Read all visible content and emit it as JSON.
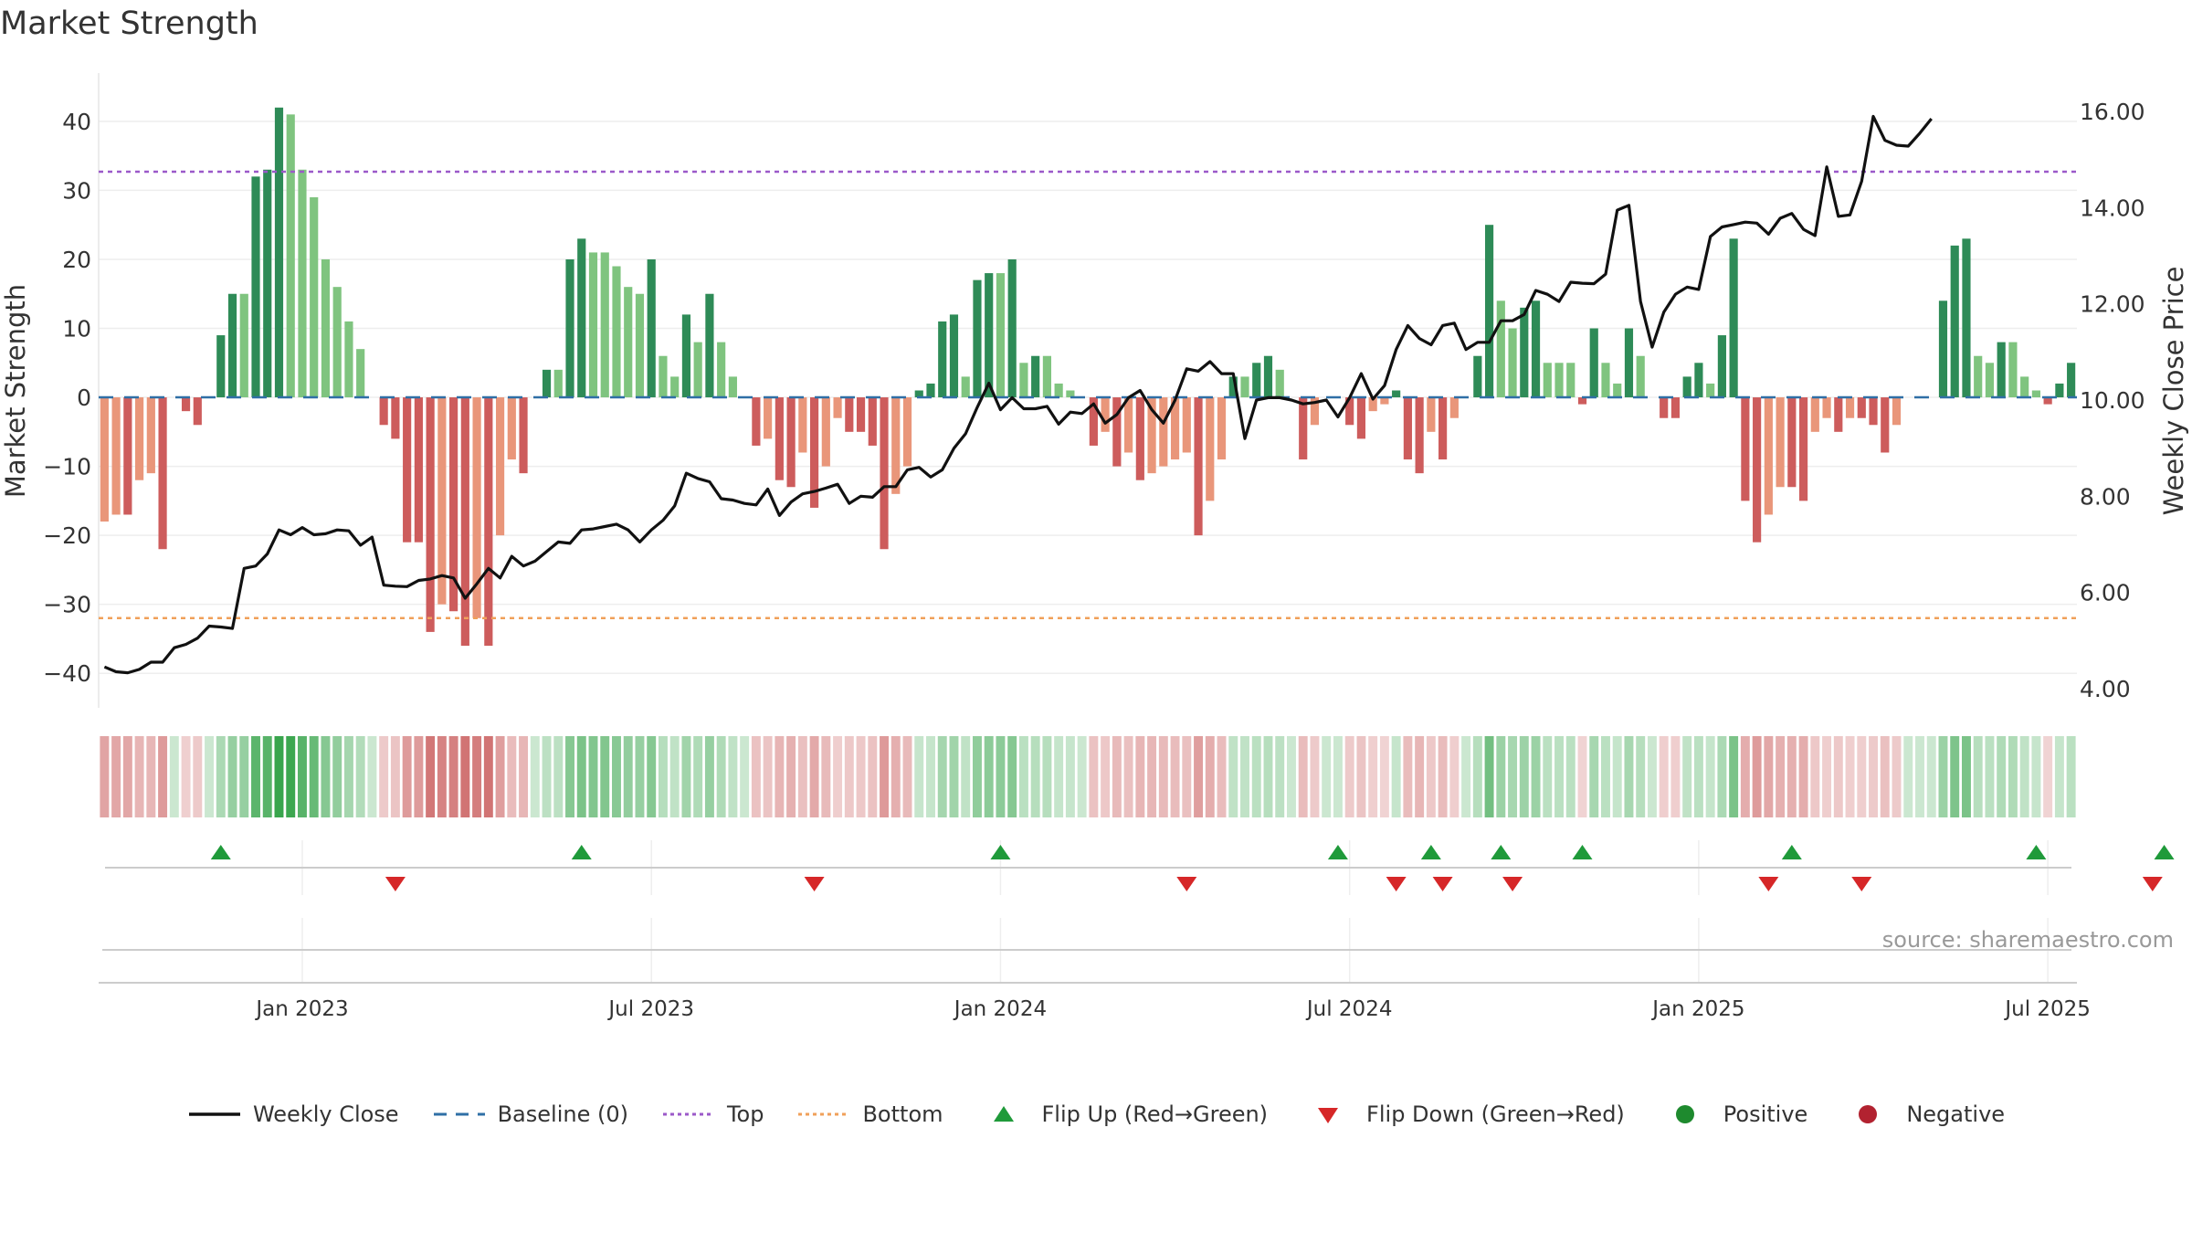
{
  "chart_data": {
    "type": "bar",
    "title": "Market Strength",
    "ylabel": "Market Strength",
    "y2label": "Weekly Close Price",
    "ylim": [
      -45,
      47
    ],
    "y2lim": [
      3.6,
      16.8
    ],
    "yticks": [
      40,
      30,
      20,
      10,
      0,
      -10,
      -20,
      -30,
      -40
    ],
    "yticklabels": [
      "40",
      "30",
      "20",
      "10",
      "0",
      "−10",
      "−20",
      "−30",
      "−40"
    ],
    "y2ticks": [
      16,
      14,
      12,
      10,
      8,
      6,
      4
    ],
    "y2ticklabels": [
      "16.00",
      "14.00",
      "12.00",
      "10.00",
      "8.00",
      "6.00",
      "4.00"
    ],
    "x_ticks": [
      {
        "label": "Jan 2023",
        "week": 17
      },
      {
        "label": "Jul 2023",
        "week": 47
      },
      {
        "label": "Jan 2024",
        "week": 77
      },
      {
        "label": "Jul 2024",
        "week": 107
      },
      {
        "label": "Jan 2025",
        "week": 137
      },
      {
        "label": "Jul 2025",
        "week": 167
      }
    ],
    "top_line": 32.7,
    "bottom_line": -32,
    "strength": [
      -18,
      -17,
      -17,
      -12,
      -11,
      -22,
      0,
      -2,
      -4,
      0,
      9,
      15,
      15,
      32,
      33,
      42,
      41,
      33,
      29,
      20,
      16,
      11,
      7,
      0,
      -4,
      -6,
      -21,
      -21,
      -34,
      -30,
      -31,
      -36,
      -32,
      -36,
      -20,
      -9,
      -11,
      0,
      4,
      4,
      20,
      23,
      21,
      21,
      19,
      16,
      15,
      20,
      6,
      3,
      12,
      8,
      15,
      8,
      3,
      0,
      -7,
      -6,
      -12,
      -13,
      -8,
      -16,
      -10,
      -3,
      -5,
      -5,
      -7,
      -22,
      -14,
      -10,
      1,
      2,
      11,
      12,
      3,
      17,
      18,
      18,
      20,
      5,
      6,
      6,
      2,
      1,
      0,
      -7,
      -5,
      -10,
      -8,
      -12,
      -11,
      -10,
      -9,
      -8,
      -20,
      -15,
      -9,
      3,
      3,
      5,
      6,
      4,
      0,
      -9,
      -4,
      0,
      0,
      -4,
      -6,
      -2,
      -1,
      1,
      -9,
      -11,
      -5,
      -9,
      -3,
      0,
      6,
      25,
      14,
      10,
      13,
      14,
      5,
      5,
      5,
      -1,
      10,
      5,
      2,
      10,
      6,
      0,
      -3,
      -3,
      3,
      5,
      2,
      9,
      23,
      -15,
      -21,
      -17,
      -13,
      -13,
      -15,
      -5,
      -3,
      -5,
      -3,
      -3,
      -4,
      -8,
      -4,
      0,
      0,
      0,
      14,
      22,
      23,
      6,
      5,
      8,
      8,
      3,
      1,
      -1,
      2,
      5
    ],
    "close": [
      4.45,
      4.35,
      4.33,
      4.4,
      4.55,
      4.55,
      4.85,
      4.92,
      5.05,
      5.3,
      5.28,
      5.25,
      6.5,
      6.55,
      6.8,
      7.3,
      7.2,
      7.35,
      7.2,
      7.22,
      7.3,
      7.28,
      6.98,
      7.15,
      6.15,
      6.13,
      6.12,
      6.25,
      6.28,
      6.35,
      6.3,
      5.88,
      6.18,
      6.5,
      6.3,
      6.75,
      6.55,
      6.65,
      6.85,
      7.05,
      7.02,
      7.3,
      7.32,
      7.37,
      7.42,
      7.3,
      7.05,
      7.3,
      7.5,
      7.8,
      8.48,
      8.37,
      8.3,
      7.95,
      7.92,
      7.85,
      7.82,
      8.15,
      7.6,
      7.88,
      8.05,
      8.1,
      8.17,
      8.25,
      7.85,
      8.0,
      7.98,
      8.2,
      8.2,
      8.55,
      8.6,
      8.4,
      8.55,
      9.0,
      9.3,
      9.85,
      10.35,
      9.8,
      10.05,
      9.82,
      9.82,
      9.87,
      9.5,
      9.75,
      9.72,
      9.92,
      9.52,
      9.7,
      10.05,
      10.2,
      9.8,
      9.52,
      10.0,
      10.65,
      10.6,
      10.8,
      10.55,
      10.55,
      9.2,
      10.0,
      10.05,
      10.05,
      10.0,
      9.92,
      9.95,
      10.0,
      9.65,
      10.05,
      10.55,
      10.02,
      10.3,
      11.05,
      11.55,
      11.28,
      11.15,
      11.55,
      11.6,
      11.05,
      11.2,
      11.2,
      11.65,
      11.65,
      11.78,
      12.28,
      12.2,
      12.05,
      12.45,
      12.43,
      12.42,
      12.62,
      13.95,
      14.05,
      12.05,
      11.1,
      11.83,
      12.2,
      12.35,
      12.3,
      13.4,
      13.6,
      13.65,
      13.7,
      13.68,
      13.45,
      13.78,
      13.88,
      13.55,
      13.42,
      14.85,
      13.82,
      13.85,
      14.55,
      15.9,
      15.4,
      15.3,
      15.28,
      15.55,
      15.85
    ],
    "flip_up_weeks": [
      10,
      41,
      77,
      106,
      114,
      120,
      127,
      145,
      166,
      177
    ],
    "flip_down_weeks": [
      25,
      61,
      93,
      111,
      115,
      121,
      143,
      151,
      176
    ],
    "source": "source: sharemaestro.com",
    "legend": [
      {
        "label": "Weekly Close",
        "symbol": "line",
        "color": "#111111"
      },
      {
        "label": "Baseline (0)",
        "symbol": "dash",
        "color": "#2f6fa6"
      },
      {
        "label": "Top",
        "symbol": "dotted",
        "color": "#9b59c9"
      },
      {
        "label": "Bottom",
        "symbol": "dotted",
        "color": "#f0a05a"
      },
      {
        "label": "Flip Up (Red→Green)",
        "symbol": "triangle-up",
        "color": "#1f9a3a"
      },
      {
        "label": "Flip Down (Green→Red)",
        "symbol": "triangle-down",
        "color": "#d62728"
      },
      {
        "label": "Positive",
        "symbol": "circle",
        "color": "#1e8a2e"
      },
      {
        "label": "Negative",
        "symbol": "circle",
        "color": "#b22230"
      }
    ],
    "colors": {
      "pos_strong": "#2e8b57",
      "pos_weak": "#7fc47f",
      "neg_strong": "#cd5c5c",
      "neg_weak": "#e9967a",
      "grid": "#eeeeee"
    }
  }
}
